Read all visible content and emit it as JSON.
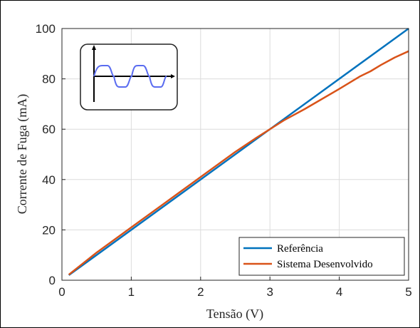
{
  "chart_data": {
    "type": "line",
    "title": "",
    "xlabel": "Tensão (V)",
    "ylabel": "Corrente de Fuga (mA)",
    "xlim": [
      0,
      5
    ],
    "ylim": [
      0,
      100
    ],
    "xticks": [
      "0",
      "1",
      "2",
      "3",
      "4",
      "5"
    ],
    "yticks": [
      "0",
      "20",
      "40",
      "60",
      "80",
      "100"
    ],
    "grid": true,
    "legend_position": "bottom-right",
    "inset_icon": "ac-sine-wave-icon",
    "series": [
      {
        "name": "Referência",
        "color": "#0072BD",
        "x": [
          0.1,
          5.0
        ],
        "y": [
          2.0,
          100.0
        ]
      },
      {
        "name": "Sistema Desenvolvido",
        "color": "#D95319",
        "x": [
          0.1,
          0.5,
          1.0,
          1.5,
          2.0,
          2.5,
          2.8,
          3.0,
          3.2,
          3.5,
          4.0,
          4.3,
          4.45,
          4.6,
          4.8,
          5.0
        ],
        "y": [
          2.2,
          11.0,
          21.0,
          31.0,
          41.0,
          51.0,
          56.5,
          60.0,
          63.5,
          68.0,
          76.0,
          81.0,
          83.0,
          85.5,
          88.5,
          91.0
        ]
      }
    ]
  }
}
